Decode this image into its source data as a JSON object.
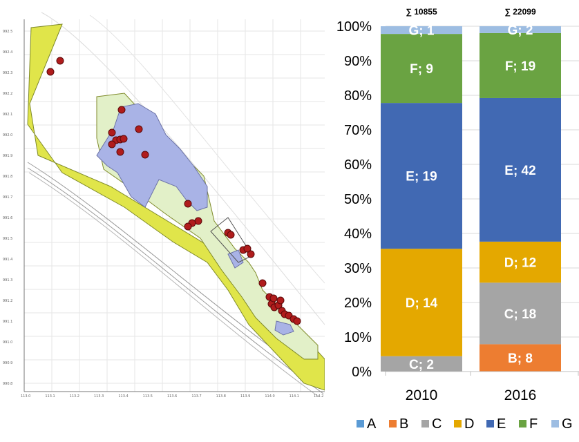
{
  "map": {
    "y_ticks": [
      "992.5",
      "992.4",
      "992.3",
      "992.2",
      "992.1",
      "992.0",
      "991.9",
      "991.8",
      "991.7",
      "991.6",
      "991.5",
      "991.4",
      "991.3",
      "991.2",
      "991.1",
      "991.0",
      "990.9",
      "990.8"
    ],
    "x_ticks": [
      "113.0",
      "113.1",
      "113.2",
      "113.3",
      "113.4",
      "113.5",
      "113.6",
      "113.7",
      "113.8",
      "113.9",
      "114.0",
      "114.1",
      "114.2"
    ]
  },
  "chart_data": {
    "type": "bar",
    "stacked": "percent",
    "categories": [
      "2010",
      "2016"
    ],
    "totals": [
      "∑ 10855",
      "∑ 22099"
    ],
    "y_ticks": [
      "0%",
      "10%",
      "20%",
      "30%",
      "40%",
      "50%",
      "60%",
      "70%",
      "80%",
      "90%",
      "100%"
    ],
    "ylim": [
      0,
      100
    ],
    "legend_position": "bottom",
    "series": [
      {
        "name": "A",
        "color": "#5b9bd5",
        "values": [
          0,
          0
        ],
        "labels": [
          "",
          ""
        ]
      },
      {
        "name": "B",
        "color": "#ed7d31",
        "values": [
          0,
          8
        ],
        "labels": [
          "",
          "B; 8"
        ]
      },
      {
        "name": "C",
        "color": "#a5a5a5",
        "values": [
          2,
          18
        ],
        "labels": [
          "C; 2",
          "C; 18"
        ]
      },
      {
        "name": "D",
        "color": "#e4a800",
        "values": [
          14,
          12
        ],
        "labels": [
          "D; 14",
          "D; 12"
        ]
      },
      {
        "name": "E",
        "color": "#4169b3",
        "values": [
          19,
          42
        ],
        "labels": [
          "E; 19",
          "E; 42"
        ]
      },
      {
        "name": "F",
        "color": "#6aa342",
        "values": [
          9,
          19
        ],
        "labels": [
          "F; 9",
          "F; 19"
        ]
      },
      {
        "name": "G",
        "color": "#9dbde2",
        "values": [
          1,
          2
        ],
        "labels": [
          "G; 1",
          "G; 2"
        ]
      }
    ]
  }
}
